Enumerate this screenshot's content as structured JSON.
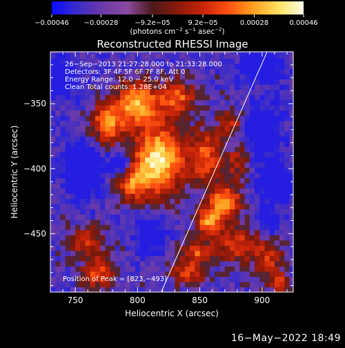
{
  "colorbar": {
    "ticks": [
      {
        "value": -0.00046,
        "label": "−0.00046"
      },
      {
        "value": -0.00028,
        "label": "−0.00028"
      },
      {
        "value": -9.2e-05,
        "label": "−9.2e−05"
      },
      {
        "value": 9.2e-05,
        "label": "9.2e−05"
      },
      {
        "value": 0.00028,
        "label": "0.00028"
      },
      {
        "value": 0.00046,
        "label": "0.00046"
      }
    ],
    "range": [
      -0.00046,
      0.00046
    ],
    "unit_prefix": "(photons cm",
    "unit_sup1": "−2",
    "unit_mid": " s",
    "unit_sup2": "−1",
    "unit_mid2": " asec",
    "unit_sup3": "−2",
    "unit_suffix": ")",
    "colors": [
      "#0a0aff",
      "#3a2cc8",
      "#6a3aa8",
      "#8a4aa0",
      "#4a1a18",
      "#8a1a0a",
      "#c8240a",
      "#ff5010",
      "#ffa020",
      "#ffe060",
      "#ffffe8"
    ]
  },
  "chart_data": {
    "type": "heatmap",
    "title": "Reconstructed RHESSI Image",
    "xlabel": "Heliocentric X (arcsec)",
    "ylabel": "Heliocentric Y (arcsec)",
    "xlim": [
      730,
      925
    ],
    "ylim": [
      -495,
      -310
    ],
    "xticks": [
      750,
      800,
      850,
      900
    ],
    "yticks": [
      -350,
      -400,
      -450
    ],
    "annotations": [
      "26−Sep−2013 21:27:28.000 to 21:33:28.000",
      "Detectors: 3F 4F 5F 6F 7F 8F, Att 0",
      "Energy Range: 12.0 − 25.0 keV",
      "Clean    Total counts: 1.28E+04"
    ],
    "peak_label": "Position of Peak = [823,−493]",
    "limb_line": [
      [
        819,
        -495
      ],
      [
        904,
        -310
      ]
    ],
    "grid_step_arcsec": 4,
    "grid_seed": 11,
    "sources": [
      {
        "x": 817,
        "y": -393,
        "amp": 1.0,
        "sx": 14,
        "sy": 18
      },
      {
        "x": 800,
        "y": -350,
        "amp": 0.8,
        "sx": 12,
        "sy": 12
      },
      {
        "x": 776,
        "y": -365,
        "amp": 0.7,
        "sx": 9,
        "sy": 11
      },
      {
        "x": 832,
        "y": -345,
        "amp": 0.6,
        "sx": 10,
        "sy": 9
      },
      {
        "x": 795,
        "y": -410,
        "amp": 0.55,
        "sx": 10,
        "sy": 10
      },
      {
        "x": 855,
        "y": -390,
        "amp": 0.6,
        "sx": 9,
        "sy": 14
      },
      {
        "x": 870,
        "y": -425,
        "amp": 0.75,
        "sx": 9,
        "sy": 9
      },
      {
        "x": 857,
        "y": -440,
        "amp": 0.75,
        "sx": 7,
        "sy": 7
      },
      {
        "x": 848,
        "y": -463,
        "amp": 0.55,
        "sx": 8,
        "sy": 6
      },
      {
        "x": 880,
        "y": -458,
        "amp": 0.5,
        "sx": 12,
        "sy": 10
      },
      {
        "x": 840,
        "y": -480,
        "amp": 0.5,
        "sx": 10,
        "sy": 7
      },
      {
        "x": 905,
        "y": -470,
        "amp": 0.45,
        "sx": 8,
        "sy": 10
      },
      {
        "x": 758,
        "y": -455,
        "amp": 0.45,
        "sx": 10,
        "sy": 8
      },
      {
        "x": 768,
        "y": -480,
        "amp": 0.55,
        "sx": 9,
        "sy": 9
      },
      {
        "x": 875,
        "y": -365,
        "amp": 0.4,
        "sx": 7,
        "sy": 8
      },
      {
        "x": 880,
        "y": -395,
        "amp": 0.35,
        "sx": 6,
        "sy": 10
      },
      {
        "x": 914,
        "y": -488,
        "amp": 0.5,
        "sx": 5,
        "sy": 5
      }
    ],
    "cool_regions": [
      {
        "x": 757,
        "y": -400,
        "amp": 0.6,
        "sx": 10,
        "sy": 12
      },
      {
        "x": 787,
        "y": -397,
        "amp": 0.5,
        "sx": 6,
        "sy": 7
      },
      {
        "x": 900,
        "y": -370,
        "amp": 0.5,
        "sx": 9,
        "sy": 12
      },
      {
        "x": 910,
        "y": -410,
        "amp": 0.55,
        "sx": 8,
        "sy": 10
      },
      {
        "x": 900,
        "y": -320,
        "amp": 0.5,
        "sx": 10,
        "sy": 8
      },
      {
        "x": 810,
        "y": -450,
        "amp": 0.4,
        "sx": 8,
        "sy": 8
      },
      {
        "x": 740,
        "y": -330,
        "amp": 0.4,
        "sx": 8,
        "sy": 10
      },
      {
        "x": 905,
        "y": -440,
        "amp": 0.35,
        "sx": 6,
        "sy": 6
      }
    ]
  },
  "footer": "16−May−2022 18:49"
}
